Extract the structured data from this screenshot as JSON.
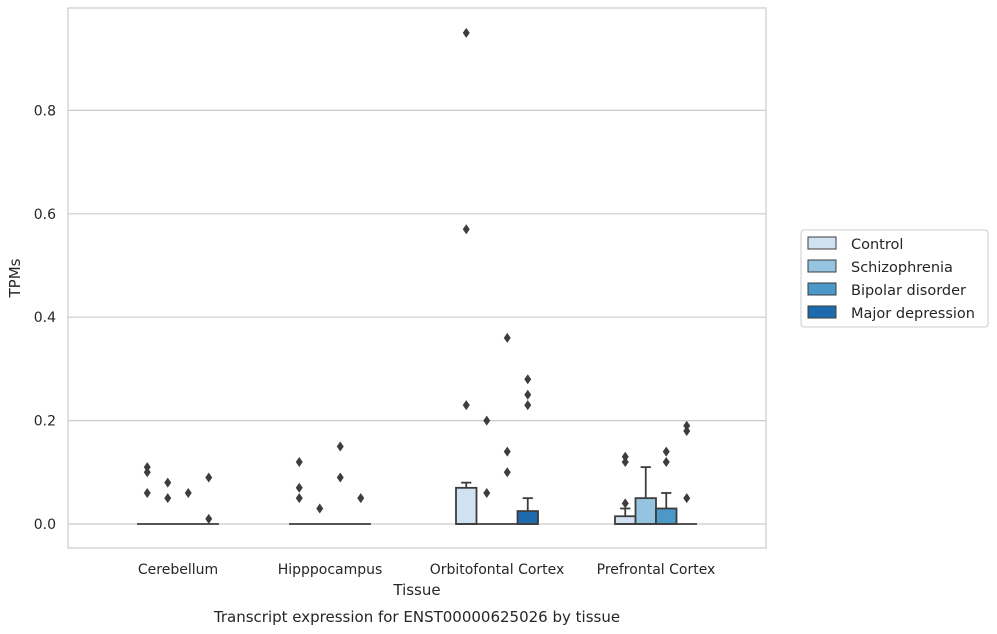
{
  "chart_data": {
    "type": "box",
    "title": "",
    "caption": "Transcript expression for ENST00000625026 by tissue",
    "xlabel": "Tissue",
    "ylabel": "TPMs",
    "ylim": [
      -0.045,
      0.99
    ],
    "yticks": [
      "0.0",
      "0.2",
      "0.4",
      "0.6",
      "0.8"
    ],
    "grid": "horizontal",
    "legend_placement": "center-right outside",
    "categories": [
      "Cerebellum",
      "Hipppocampus",
      "Orbitofontal Cortex",
      "Prefrontal Cortex"
    ],
    "colors": {
      "Control": "#d0e1f2",
      "Schizophrenia": "#94c4df",
      "Bipolar disorder": "#4b98c9",
      "Major depression": "#1d6aaf",
      "edge": "#3d3d3d",
      "grid": "#cccccc",
      "frame": "#cccccc"
    },
    "series": [
      {
        "name": "Control",
        "boxes": [
          {
            "q1": 0,
            "median": 0,
            "q3": 0,
            "whislo": 0,
            "whishi": 0,
            "fliers": [
              0.11,
              0.1,
              0.06
            ]
          },
          {
            "q1": 0,
            "median": 0,
            "q3": 0,
            "whislo": 0,
            "whishi": 0,
            "fliers": [
              0.12,
              0.07,
              0.05
            ]
          },
          {
            "q1": 0,
            "median": 0,
            "q3": 0.07,
            "whislo": 0,
            "whishi": 0.08,
            "fliers": [
              0.95,
              0.57,
              0.23
            ]
          },
          {
            "q1": 0,
            "median": 0,
            "q3": 0.015,
            "whislo": 0,
            "whishi": 0.03,
            "fliers": [
              0.13,
              0.12,
              0.04
            ]
          }
        ]
      },
      {
        "name": "Schizophrenia",
        "boxes": [
          {
            "q1": 0,
            "median": 0,
            "q3": 0,
            "whislo": 0,
            "whishi": 0,
            "fliers": [
              0.08,
              0.05
            ]
          },
          {
            "q1": 0,
            "median": 0,
            "q3": 0,
            "whislo": 0,
            "whishi": 0,
            "fliers": [
              0.03
            ]
          },
          {
            "q1": 0,
            "median": 0,
            "q3": 0,
            "whislo": 0,
            "whishi": 0,
            "fliers": [
              0.2,
              0.06
            ]
          },
          {
            "q1": 0,
            "median": 0,
            "q3": 0.05,
            "whislo": 0,
            "whishi": 0.11,
            "fliers": []
          }
        ]
      },
      {
        "name": "Bipolar disorder",
        "boxes": [
          {
            "q1": 0,
            "median": 0,
            "q3": 0,
            "whislo": 0,
            "whishi": 0,
            "fliers": [
              0.06
            ]
          },
          {
            "q1": 0,
            "median": 0,
            "q3": 0,
            "whislo": 0,
            "whishi": 0,
            "fliers": [
              0.15,
              0.09
            ]
          },
          {
            "q1": 0,
            "median": 0,
            "q3": 0,
            "whislo": 0,
            "whishi": 0,
            "fliers": [
              0.36,
              0.14,
              0.1
            ]
          },
          {
            "q1": 0,
            "median": 0,
            "q3": 0.03,
            "whislo": 0,
            "whishi": 0.06,
            "fliers": [
              0.14,
              0.12
            ]
          }
        ]
      },
      {
        "name": "Major depression",
        "boxes": [
          {
            "q1": 0,
            "median": 0,
            "q3": 0,
            "whislo": 0,
            "whishi": 0,
            "fliers": [
              0.09,
              0.01
            ]
          },
          {
            "q1": 0,
            "median": 0,
            "q3": 0,
            "whislo": 0,
            "whishi": 0,
            "fliers": [
              0.05
            ]
          },
          {
            "q1": 0,
            "median": 0,
            "q3": 0.025,
            "whislo": 0,
            "whishi": 0.05,
            "fliers": [
              0.28,
              0.25,
              0.23
            ]
          },
          {
            "q1": 0,
            "median": 0,
            "q3": 0,
            "whislo": 0,
            "whishi": 0,
            "fliers": [
              0.19,
              0.18,
              0.05
            ]
          }
        ]
      }
    ]
  }
}
